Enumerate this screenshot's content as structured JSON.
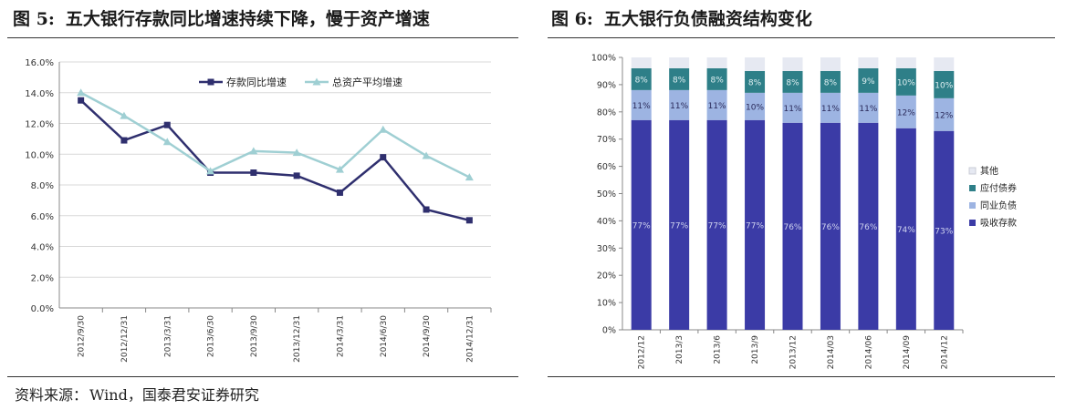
{
  "figures": {
    "left": {
      "number": "图 5:",
      "title": "五大银行存款同比增速持续下降，慢于资产增速"
    },
    "right": {
      "number": "图 6:",
      "title": "五大银行负债融资结构变化"
    }
  },
  "source": {
    "label": "资料来源：",
    "text": "Wind，国泰君安证券研究"
  },
  "chart_data": [
    {
      "type": "line",
      "title": "五大银行存款同比增速持续下降，慢于资产增速",
      "categories": [
        "2012/9/30",
        "2012/12/31",
        "2013/3/31",
        "2013/6/30",
        "2013/9/30",
        "2013/12/31",
        "2014/3/31",
        "2014/6/30",
        "2014/9/30",
        "2014/12/31"
      ],
      "y_ticks": [
        "0.0%",
        "2.0%",
        "4.0%",
        "6.0%",
        "8.0%",
        "10.0%",
        "12.0%",
        "14.0%",
        "16.0%"
      ],
      "ylim": [
        0,
        16
      ],
      "series": [
        {
          "name": "存款同比增速",
          "color": "#2f2f6e",
          "marker": "square",
          "values": [
            13.5,
            10.9,
            11.9,
            8.8,
            8.8,
            8.6,
            7.5,
            9.8,
            6.4,
            5.7
          ]
        },
        {
          "name": "总资产平均增速",
          "color": "#9fcfd3",
          "marker": "triangle",
          "values": [
            14.0,
            12.5,
            10.8,
            8.9,
            10.2,
            10.1,
            9.0,
            11.6,
            9.9,
            8.5
          ]
        }
      ],
      "legend_position": "top-right",
      "grid": true
    },
    {
      "type": "bar",
      "stacked": true,
      "title": "五大银行负债融资结构变化",
      "categories": [
        "2012/12",
        "2013/3",
        "2013/6",
        "2013/9",
        "2013/12",
        "2014/03",
        "2014/06",
        "2014/09",
        "2014/12"
      ],
      "y_ticks": [
        "0%",
        "10%",
        "20%",
        "30%",
        "40%",
        "50%",
        "60%",
        "70%",
        "80%",
        "90%",
        "100%"
      ],
      "ylim": [
        0,
        100
      ],
      "series": [
        {
          "name": "吸收存款",
          "color": "#3b3ba6",
          "label_color": "#cfd3ee",
          "values": [
            77,
            77,
            77,
            77,
            76,
            76,
            76,
            74,
            73
          ],
          "labels": [
            "77%",
            "77%",
            "77%",
            "77%",
            "76%",
            "76%",
            "76%",
            "74%",
            "73%"
          ]
        },
        {
          "name": "同业负债",
          "color": "#9db4e2",
          "label_color": "#2a2a5a",
          "values": [
            11,
            11,
            11,
            10,
            11,
            11,
            11,
            12,
            12
          ],
          "labels": [
            "11%",
            "11%",
            "11%",
            "10%",
            "11%",
            "11%",
            "11%",
            "12%",
            "12%"
          ]
        },
        {
          "name": "应付债券",
          "color": "#2e7f88",
          "label_color": "#dfeff1",
          "values": [
            8,
            8,
            8,
            8,
            8,
            8,
            9,
            10,
            10
          ],
          "labels": [
            "8%",
            "8%",
            "8%",
            "8%",
            "8%",
            "8%",
            "9%",
            "10%",
            "10%"
          ]
        },
        {
          "name": "其他",
          "color": "#e6e9f2",
          "label_color": "#555555",
          "values": [
            4,
            4,
            4,
            5,
            5,
            5,
            4,
            4,
            5
          ],
          "labels": []
        }
      ],
      "legend_position": "right",
      "legend_order": [
        "其他",
        "应付债券",
        "同业负债",
        "吸收存款"
      ],
      "grid": false
    }
  ]
}
